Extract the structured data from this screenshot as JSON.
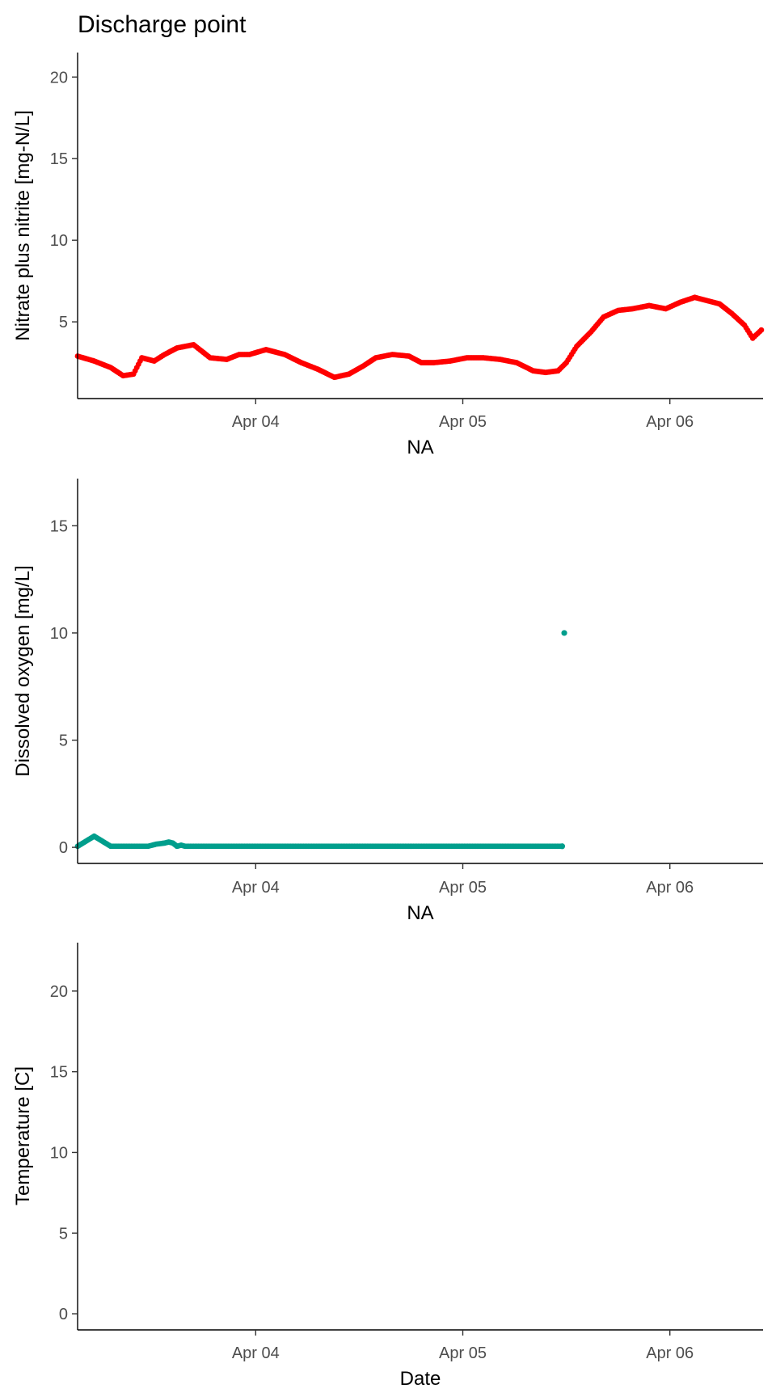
{
  "chart_data": [
    {
      "type": "scatter",
      "title": "Discharge point",
      "xlabel": "NA",
      "ylabel": "Nitrate plus nitrite [mg-N/L]",
      "x_ticks": [
        "Apr 04",
        "Apr 05",
        "Apr 06"
      ],
      "y_ticks": [
        5,
        10,
        15,
        20
      ],
      "xlim": [
        0.14,
        3.45
      ],
      "ylim": [
        0.3,
        21.5
      ],
      "color": "#ff0000",
      "series": [
        {
          "x": [
            0.14,
            0.22,
            0.3,
            0.36,
            0.41,
            0.45,
            0.51,
            0.56,
            0.62,
            0.7,
            0.78,
            0.86,
            0.92,
            0.97,
            1.05,
            1.14,
            1.22,
            1.3,
            1.38,
            1.45,
            1.52,
            1.58,
            1.66,
            1.74,
            1.8,
            1.86,
            1.94,
            2.02,
            2.1,
            2.18,
            2.26,
            2.34,
            2.4,
            2.46,
            2.5,
            2.55,
            2.62,
            2.68,
            2.75,
            2.82,
            2.9,
            2.98,
            3.05,
            3.12,
            3.18,
            3.24,
            3.3,
            3.36,
            3.4,
            3.45
          ],
          "y": [
            2.9,
            2.6,
            2.2,
            1.7,
            1.8,
            2.8,
            2.6,
            3.0,
            3.4,
            3.6,
            2.8,
            2.7,
            3.0,
            3.0,
            3.3,
            3.0,
            2.5,
            2.1,
            1.6,
            1.8,
            2.3,
            2.8,
            3.0,
            2.9,
            2.5,
            2.5,
            2.6,
            2.8,
            2.8,
            2.7,
            2.5,
            2.0,
            1.9,
            2.0,
            2.5,
            3.5,
            4.4,
            5.3,
            5.7,
            5.8,
            6.0,
            5.8,
            6.2,
            6.5,
            6.3,
            6.1,
            5.5,
            4.8,
            4.0,
            4.6
          ]
        }
      ]
    },
    {
      "type": "scatter",
      "xlabel": "NA",
      "ylabel": "Dissolved oxygen [mg/L]",
      "x_ticks": [
        "Apr 04",
        "Apr 05",
        "Apr 06"
      ],
      "y_ticks": [
        0,
        5,
        10,
        15
      ],
      "xlim": [
        0.14,
        3.45
      ],
      "ylim": [
        -0.75,
        17.2
      ],
      "color": "#009e8c",
      "series": [
        {
          "x": [
            0.14,
            0.22,
            0.3,
            0.4,
            0.48,
            0.52,
            0.56,
            0.58,
            0.6,
            0.62,
            0.64,
            0.66,
            0.7,
            0.8,
            1.0,
            1.2,
            1.4,
            1.6,
            1.8,
            2.0,
            2.2,
            2.35,
            2.48,
            2.49
          ],
          "y": [
            0.05,
            0.52,
            0.05,
            0.05,
            0.05,
            0.15,
            0.2,
            0.25,
            0.2,
            0.05,
            0.1,
            0.05,
            0.05,
            0.05,
            0.05,
            0.05,
            0.05,
            0.05,
            0.05,
            0.05,
            0.05,
            0.05,
            0.05,
            10.0
          ]
        }
      ]
    },
    {
      "type": "scatter",
      "xlabel": "Date",
      "ylabel": "Temperature [C]",
      "x_ticks": [
        "Apr 04",
        "Apr 05",
        "Apr 06"
      ],
      "y_ticks": [
        0,
        5,
        10,
        15,
        20
      ],
      "xlim": [
        0.14,
        3.45
      ],
      "ylim": [
        -1.0,
        23.0
      ],
      "color": "#619cff",
      "series": [
        {
          "x": [],
          "y": []
        }
      ]
    }
  ]
}
